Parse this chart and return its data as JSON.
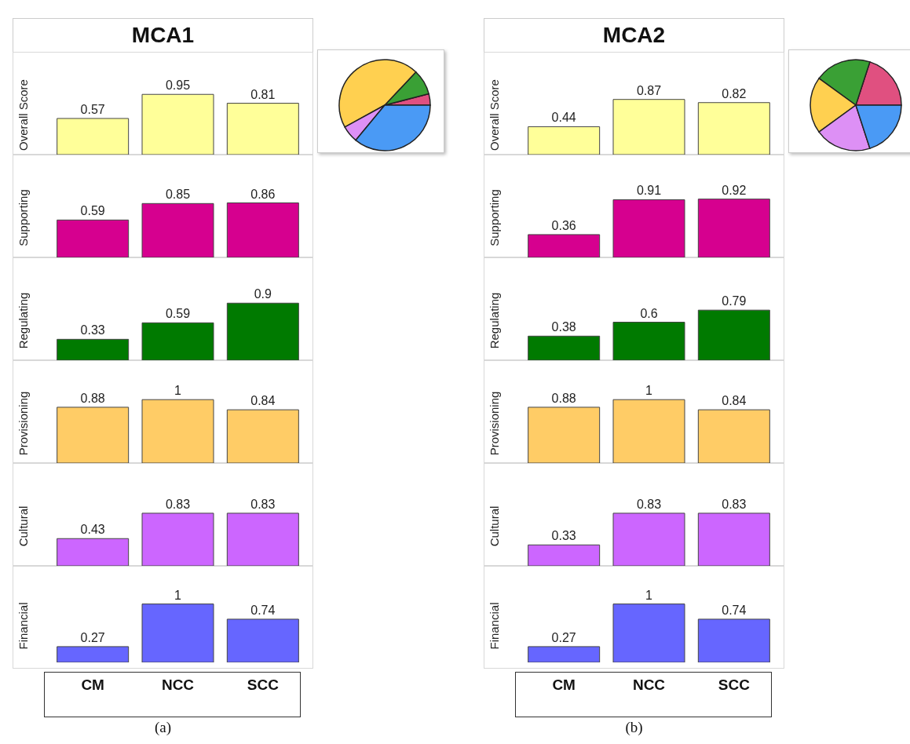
{
  "chart_data": [
    {
      "type": "bar",
      "title": "MCA1",
      "ylabel": "Overall Score",
      "categories": [
        null,
        null,
        null
      ],
      "values": [
        0.57,
        0.95,
        0.81
      ],
      "color": "#ffff99",
      "data_labels": true,
      "tick_labels": "x"
    },
    {
      "type": "bar",
      "ylabel": "Supporting",
      "categories": [
        null,
        null,
        null
      ],
      "values": [
        0.59,
        0.85,
        0.86
      ],
      "color": "#d6008f",
      "data_labels": true,
      "tick_labels": "x"
    },
    {
      "type": "bar",
      "ylabel": "Regulating",
      "categories": [
        null,
        null,
        null
      ],
      "values": [
        0.33,
        0.59,
        0.9
      ],
      "color": "#007a00",
      "data_labels": true,
      "tick_labels": "x"
    },
    {
      "type": "bar",
      "ylabel": "Provisioning",
      "categories": [
        null,
        null,
        null
      ],
      "values": [
        0.88,
        1,
        0.84
      ],
      "color": "#ffcc66",
      "data_labels": true,
      "tick_labels": "x"
    },
    {
      "type": "bar",
      "ylabel": "Cultural",
      "categories": [
        null,
        null,
        null
      ],
      "values": [
        0.43,
        0.83,
        0.83
      ],
      "color": "#cc66ff",
      "data_labels": true,
      "tick_labels": "x"
    },
    {
      "type": "bar",
      "ylabel": "Financial",
      "categories": [
        "CM",
        "NCC",
        "SCC"
      ],
      "values": [
        0.27,
        1,
        0.74
      ],
      "color": "#6666ff",
      "data_labels": true,
      "tick_labels": "x",
      "annotations": [
        "(a)"
      ]
    },
    {
      "type": "pie",
      "categories": [
        null,
        null,
        null,
        null,
        null
      ],
      "values": [
        4,
        9,
        45,
        6,
        36
      ],
      "colors": [
        "#e05080",
        "#3aa035",
        "#ffd050",
        "#dd90f5",
        "#4a9af5"
      ]
    },
    {
      "type": "bar",
      "title": "MCA2",
      "ylabel": "Overall Score",
      "categories": [
        null,
        null,
        null
      ],
      "values": [
        0.44,
        0.87,
        0.82
      ],
      "color": "#ffff99",
      "data_labels": true,
      "tick_labels": "x"
    },
    {
      "type": "bar",
      "ylabel": "Supporting",
      "categories": [
        null,
        null,
        null
      ],
      "values": [
        0.36,
        0.91,
        0.92
      ],
      "color": "#d6008f",
      "data_labels": true,
      "tick_labels": "x"
    },
    {
      "type": "bar",
      "ylabel": "Regulating",
      "categories": [
        null,
        null,
        null
      ],
      "values": [
        0.38,
        0.6,
        0.79
      ],
      "color": "#007a00",
      "data_labels": true,
      "tick_labels": "x"
    },
    {
      "type": "bar",
      "ylabel": "Provisioning",
      "categories": [
        null,
        null,
        null
      ],
      "values": [
        0.88,
        1,
        0.84
      ],
      "color": "#ffcc66",
      "data_labels": true,
      "tick_labels": "x"
    },
    {
      "type": "bar",
      "ylabel": "Cultural",
      "categories": [
        null,
        null,
        null
      ],
      "values": [
        0.33,
        0.83,
        0.83
      ],
      "color": "#cc66ff",
      "data_labels": true,
      "tick_labels": "x"
    },
    {
      "type": "bar",
      "ylabel": "Financial",
      "categories": [
        "CM",
        "NCC",
        "SCC"
      ],
      "values": [
        0.27,
        1,
        0.74
      ],
      "color": "#6666ff",
      "data_labels": true,
      "tick_labels": "x",
      "annotations": [
        "(b)"
      ]
    },
    {
      "type": "pie",
      "categories": [
        null,
        null,
        null,
        null,
        null
      ],
      "values": [
        20,
        20,
        20,
        20,
        20
      ],
      "colors": [
        "#e05080",
        "#3aa035",
        "#ffd050",
        "#dd90f5",
        "#4a9af5"
      ]
    }
  ]
}
